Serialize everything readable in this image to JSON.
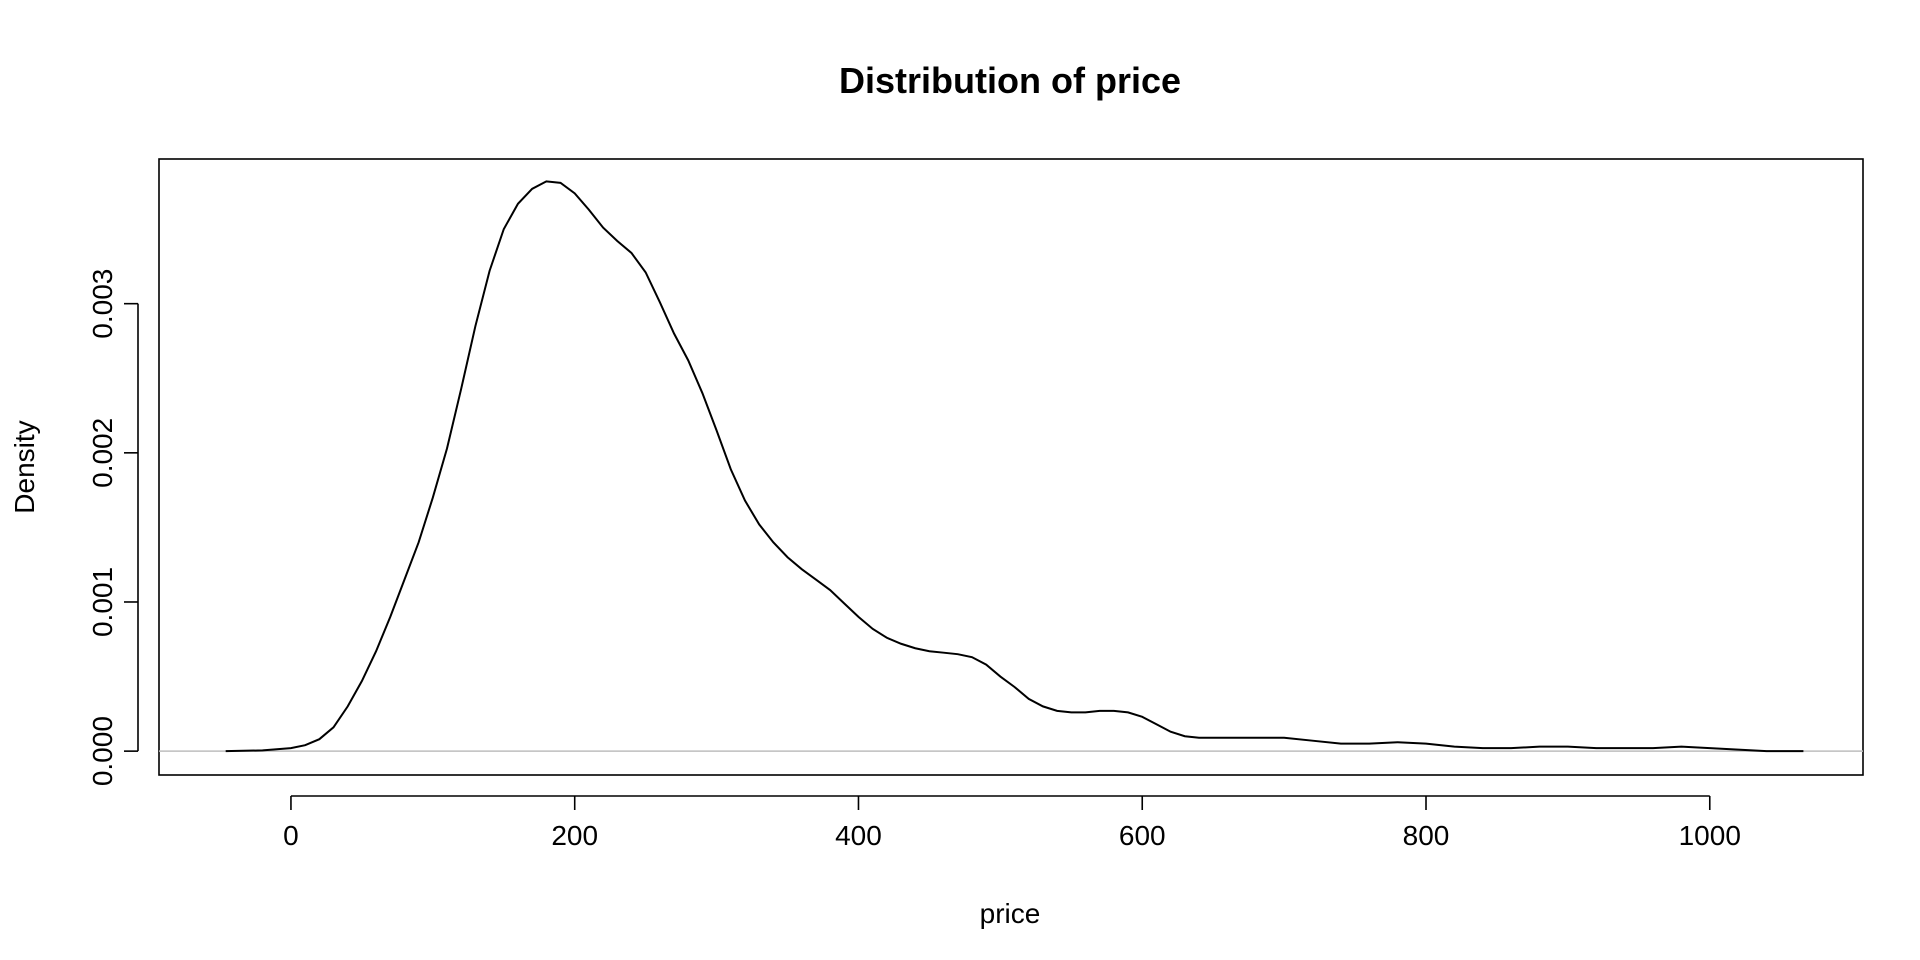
{
  "chart_data": {
    "type": "line",
    "title": "Distribution of price",
    "xlabel": "price",
    "ylabel": "Density",
    "xlim": [
      -93,
      1108
    ],
    "ylim": [
      -0.00016,
      0.00397
    ],
    "x_ticks": [
      0,
      200,
      400,
      600,
      800,
      1000
    ],
    "x_tick_labels": [
      "0",
      "200",
      "400",
      "600",
      "800",
      "1000"
    ],
    "y_ticks": [
      0.0,
      0.001,
      0.002,
      0.003
    ],
    "y_tick_labels": [
      "0.000",
      "0.001",
      "0.002",
      "0.003"
    ],
    "grid": false,
    "zero_line": true,
    "series": [
      {
        "x": [
          -46,
          -20,
          0,
          10,
          20,
          30,
          40,
          50,
          60,
          70,
          80,
          90,
          100,
          110,
          120,
          130,
          140,
          150,
          160,
          170,
          180,
          190,
          200,
          210,
          220,
          230,
          240,
          250,
          260,
          270,
          280,
          290,
          300,
          310,
          320,
          330,
          340,
          350,
          360,
          370,
          380,
          390,
          400,
          410,
          420,
          430,
          440,
          450,
          460,
          470,
          480,
          490,
          500,
          510,
          520,
          530,
          540,
          550,
          560,
          570,
          580,
          590,
          600,
          610,
          620,
          630,
          640,
          650,
          660,
          680,
          700,
          720,
          740,
          760,
          780,
          800,
          820,
          840,
          860,
          880,
          900,
          920,
          940,
          960,
          980,
          1000,
          1020,
          1040,
          1066
        ],
        "values": [
          0.0,
          5e-06,
          2e-05,
          4e-05,
          8e-05,
          0.00016,
          0.0003,
          0.00047,
          0.00067,
          0.0009,
          0.00115,
          0.0014,
          0.0017,
          0.00203,
          0.00243,
          0.00285,
          0.00322,
          0.0035,
          0.00367,
          0.00377,
          0.00382,
          0.00381,
          0.00374,
          0.00363,
          0.00351,
          0.00342,
          0.00334,
          0.00321,
          0.00301,
          0.0028,
          0.00262,
          0.0024,
          0.00215,
          0.00189,
          0.00168,
          0.00152,
          0.0014,
          0.0013,
          0.00122,
          0.00115,
          0.00108,
          0.00099,
          0.0009,
          0.00082,
          0.00076,
          0.00072,
          0.00069,
          0.00067,
          0.00066,
          0.00065,
          0.00063,
          0.00058,
          0.0005,
          0.00043,
          0.00035,
          0.0003,
          0.00027,
          0.00026,
          0.00026,
          0.00027,
          0.00027,
          0.00026,
          0.00023,
          0.00018,
          0.00013,
          0.0001,
          9e-05,
          9e-05,
          9e-05,
          9e-05,
          9e-05,
          7e-05,
          5e-05,
          5e-05,
          6e-05,
          5e-05,
          3e-05,
          2e-05,
          2e-05,
          3e-05,
          3e-05,
          2e-05,
          2e-05,
          2e-05,
          3e-05,
          2e-05,
          1e-05,
          0.0,
          0.0
        ]
      }
    ]
  }
}
